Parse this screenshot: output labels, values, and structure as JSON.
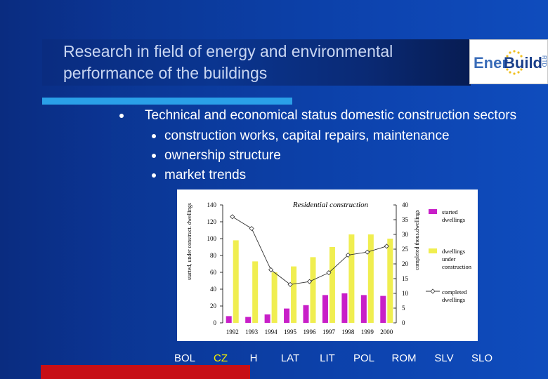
{
  "slide": {
    "title_lines": [
      "Research in field of energy and environmental",
      "performance of the buildings"
    ],
    "logo": {
      "text_part1": "Ener",
      "text_part2": "Build",
      "text_rd": "RTD"
    },
    "bullets": [
      {
        "text": "Technical and economical status domestic construction sectors",
        "level": 1
      },
      {
        "text": "construction works, capital repairs, maintenance",
        "level": 2
      },
      {
        "text": "ownership structure",
        "level": 2
      },
      {
        "text": "market trends",
        "level": 2
      }
    ],
    "countries": [
      {
        "label": "BOL",
        "highlight": false
      },
      {
        "label": "CZ",
        "highlight": true
      },
      {
        "label": "H",
        "highlight": false
      },
      {
        "label": "LAT",
        "highlight": false
      },
      {
        "label": "LIT",
        "highlight": false
      },
      {
        "label": "POL",
        "highlight": false
      },
      {
        "label": "ROM",
        "highlight": false
      },
      {
        "label": "SLV",
        "highlight": false
      },
      {
        "label": "SLO",
        "highlight": false
      }
    ],
    "colors": {
      "title": "#c9d6f2",
      "text": "#ffffff",
      "highlight": "#f5f000",
      "accent_line": "#2aa0e8",
      "bottom_bar": "#c70f16"
    }
  },
  "chart_data": {
    "type": "bar",
    "title": "Residential construction",
    "categories": [
      "1992",
      "1993",
      "1994",
      "1995",
      "1996",
      "1997",
      "1998",
      "1999",
      "2000"
    ],
    "ylabel_left": "started, under construct. dwellings",
    "ylabel_right": "completed thous.dwellings",
    "yticks_left": [
      "0",
      "20",
      "40",
      "60",
      "80",
      "100",
      "120",
      "140"
    ],
    "yticks_right": [
      "0",
      "5",
      "10",
      "15",
      "20",
      "25",
      "30",
      "35",
      "40"
    ],
    "ylim_left": [
      0,
      140
    ],
    "ylim_right": [
      0,
      40
    ],
    "series": [
      {
        "name": "started dwellings",
        "type": "bar",
        "axis": "left",
        "color": "#c81fc8",
        "values": [
          8,
          7,
          10,
          17,
          21,
          33,
          35,
          33,
          32
        ]
      },
      {
        "name": "dwellings under construction",
        "type": "bar",
        "axis": "left",
        "color": "#f0ee50",
        "values": [
          98,
          73,
          60,
          67,
          78,
          90,
          105,
          105,
          100
        ]
      },
      {
        "name": "completed dwellings",
        "type": "line",
        "axis": "right",
        "color": "#000000",
        "values": [
          36,
          32,
          18,
          13,
          14,
          17,
          23,
          24,
          26
        ]
      }
    ],
    "legend_position": "right"
  }
}
